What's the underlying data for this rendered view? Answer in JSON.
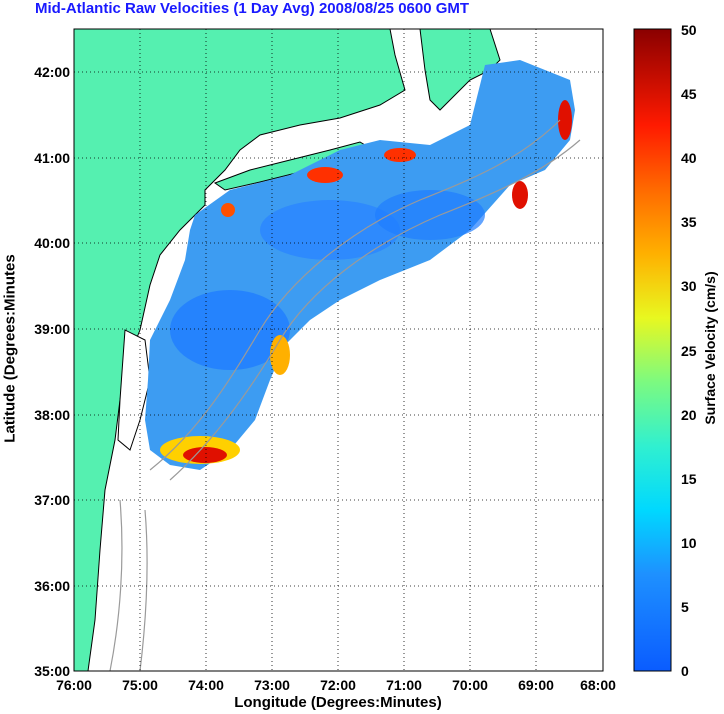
{
  "title": "Mid-Atlantic Raw Velocities (1 Day Avg) 2008/08/25 0600 GMT",
  "map": {
    "xlabel": "Longitude (Degrees:Minutes)",
    "ylabel": "Latitude (Degrees:Minutes",
    "x_ticks": [
      "76:00",
      "75:00",
      "74:00",
      "73:00",
      "72:00",
      "71:00",
      "70:00",
      "69:00",
      "68:00"
    ],
    "y_ticks": [
      "35:00",
      "36:00",
      "37:00",
      "38:00",
      "39:00",
      "40:00",
      "41:00",
      "42:00"
    ],
    "lon_range": [
      -76,
      -68
    ],
    "lat_range": [
      35,
      42.5
    ],
    "grid": "dotted",
    "land_color": "#55f0b0",
    "coast_color": "#000000",
    "bathymetry_color": "#999999"
  },
  "colorbar": {
    "label": "Surface Velocity (cm/s)",
    "ticks": [
      "0",
      "5",
      "10",
      "15",
      "20",
      "25",
      "30",
      "35",
      "40",
      "45",
      "50"
    ],
    "range": [
      0,
      50
    ],
    "colormap": "jet"
  }
}
